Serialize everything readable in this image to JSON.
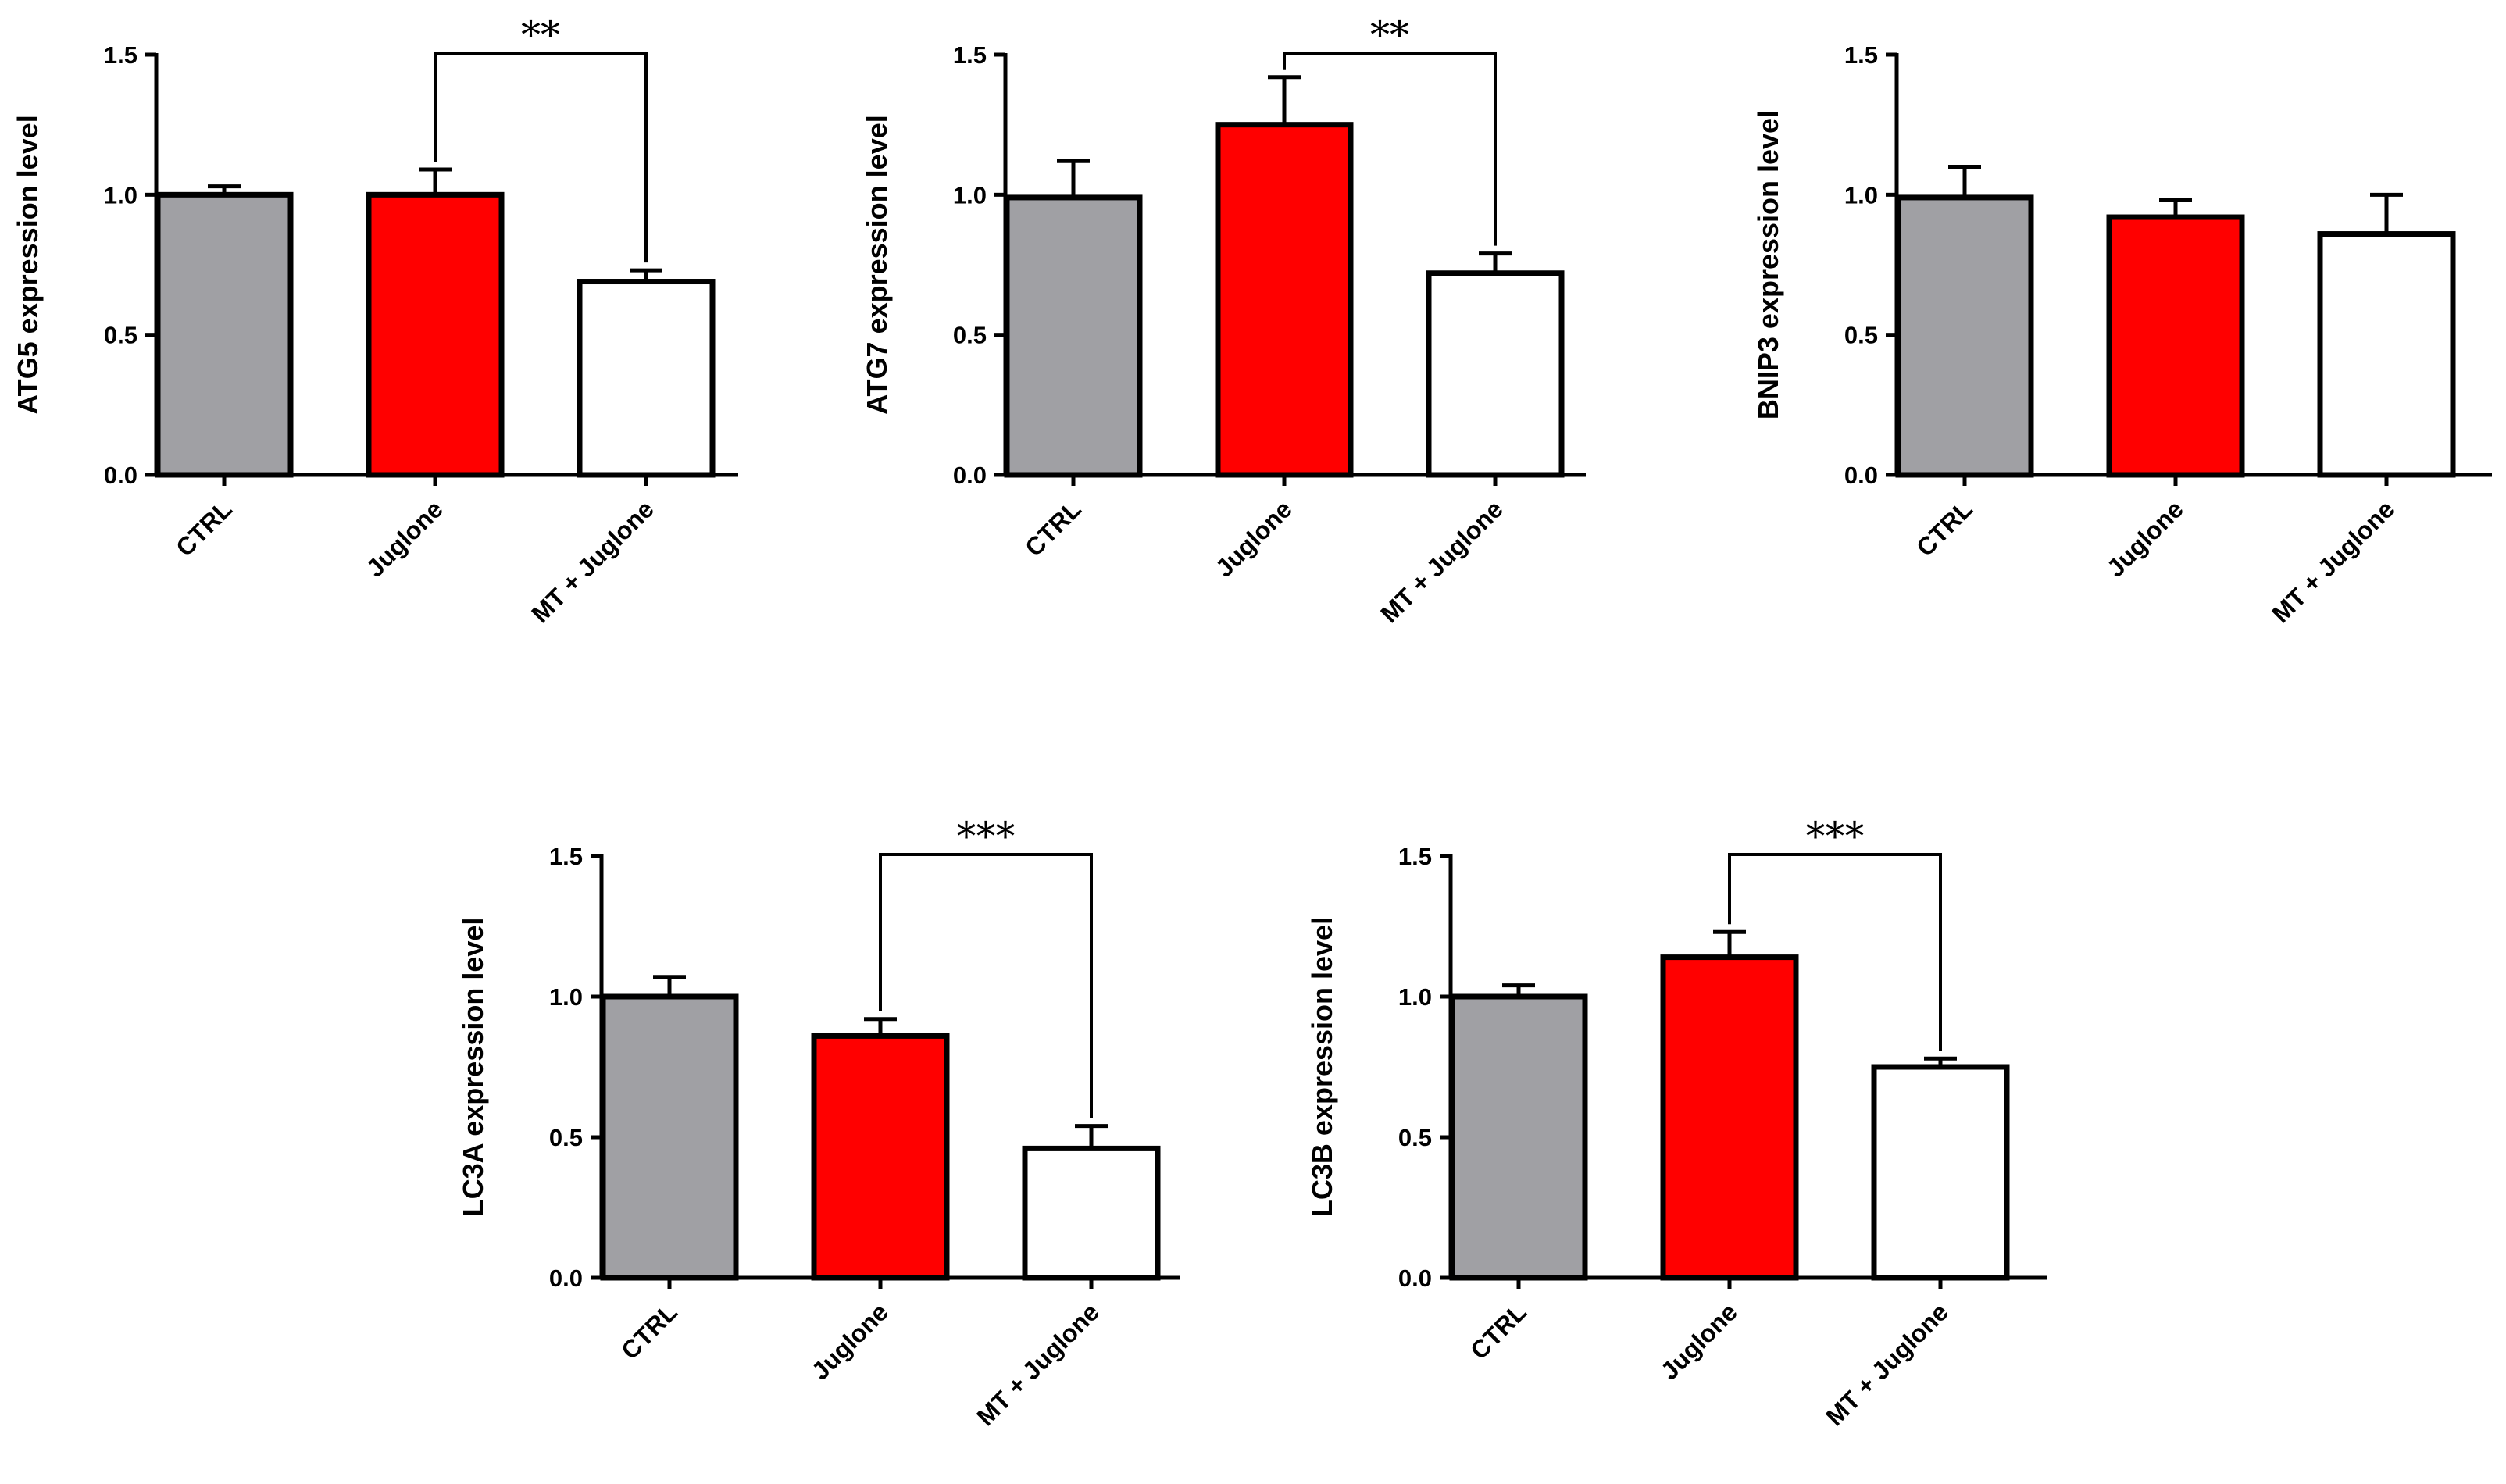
{
  "chart_data": [
    {
      "type": "bar",
      "title": "",
      "xlabel": "",
      "ylabel": "ATG5 expression level",
      "categories": [
        "CTRL",
        "Juglone",
        "MT + Juglone"
      ],
      "values": [
        1.0,
        1.0,
        0.69
      ],
      "errors": [
        0.03,
        0.09,
        0.04
      ],
      "colors": [
        "#a0a0a4",
        "#ff0000",
        "#ffffff"
      ],
      "ylim": [
        0,
        1.5
      ],
      "yticks": [
        "0.0",
        "0.5",
        "1.0",
        "1.5"
      ],
      "grid": false,
      "significance": {
        "from": 1,
        "to": 2,
        "label": "**"
      }
    },
    {
      "type": "bar",
      "title": "",
      "xlabel": "",
      "ylabel": "ATG7 expression level",
      "categories": [
        "CTRL",
        "Juglone",
        "MT + Juglone"
      ],
      "values": [
        0.99,
        1.25,
        0.72
      ],
      "errors": [
        0.13,
        0.17,
        0.07
      ],
      "colors": [
        "#a0a0a4",
        "#ff0000",
        "#ffffff"
      ],
      "ylim": [
        0,
        1.5
      ],
      "yticks": [
        "0.0",
        "0.5",
        "1.0",
        "1.5"
      ],
      "grid": false,
      "significance": {
        "from": 1,
        "to": 2,
        "label": "**"
      }
    },
    {
      "type": "bar",
      "title": "",
      "xlabel": "",
      "ylabel": "BNIP3 expression level",
      "categories": [
        "CTRL",
        "Juglone",
        "MT + Juglone"
      ],
      "values": [
        0.99,
        0.92,
        0.86
      ],
      "errors": [
        0.11,
        0.06,
        0.14
      ],
      "colors": [
        "#a0a0a4",
        "#ff0000",
        "#ffffff"
      ],
      "ylim": [
        0,
        1.5
      ],
      "yticks": [
        "0.0",
        "0.5",
        "1.0",
        "1.5"
      ],
      "grid": false,
      "significance": null
    },
    {
      "type": "bar",
      "title": "",
      "xlabel": "",
      "ylabel": "LC3A expression level",
      "categories": [
        "CTRL",
        "Juglone",
        "MT + Juglone"
      ],
      "values": [
        1.0,
        0.86,
        0.46
      ],
      "errors": [
        0.07,
        0.06,
        0.08
      ],
      "colors": [
        "#a0a0a4",
        "#ff0000",
        "#ffffff"
      ],
      "ylim": [
        0,
        1.5
      ],
      "yticks": [
        "0.0",
        "0.5",
        "1.0",
        "1.5"
      ],
      "grid": false,
      "significance": {
        "from": 1,
        "to": 2,
        "label": "***"
      }
    },
    {
      "type": "bar",
      "title": "",
      "xlabel": "",
      "ylabel": "LC3B expression level",
      "categories": [
        "CTRL",
        "Juglone",
        "MT + Juglone"
      ],
      "values": [
        1.0,
        1.14,
        0.75
      ],
      "errors": [
        0.04,
        0.09,
        0.03
      ],
      "colors": [
        "#a0a0a4",
        "#ff0000",
        "#ffffff"
      ],
      "ylim": [
        0,
        1.5
      ],
      "yticks": [
        "0.0",
        "0.5",
        "1.0",
        "1.5"
      ],
      "grid": false,
      "significance": {
        "from": 1,
        "to": 2,
        "label": "***"
      }
    }
  ]
}
